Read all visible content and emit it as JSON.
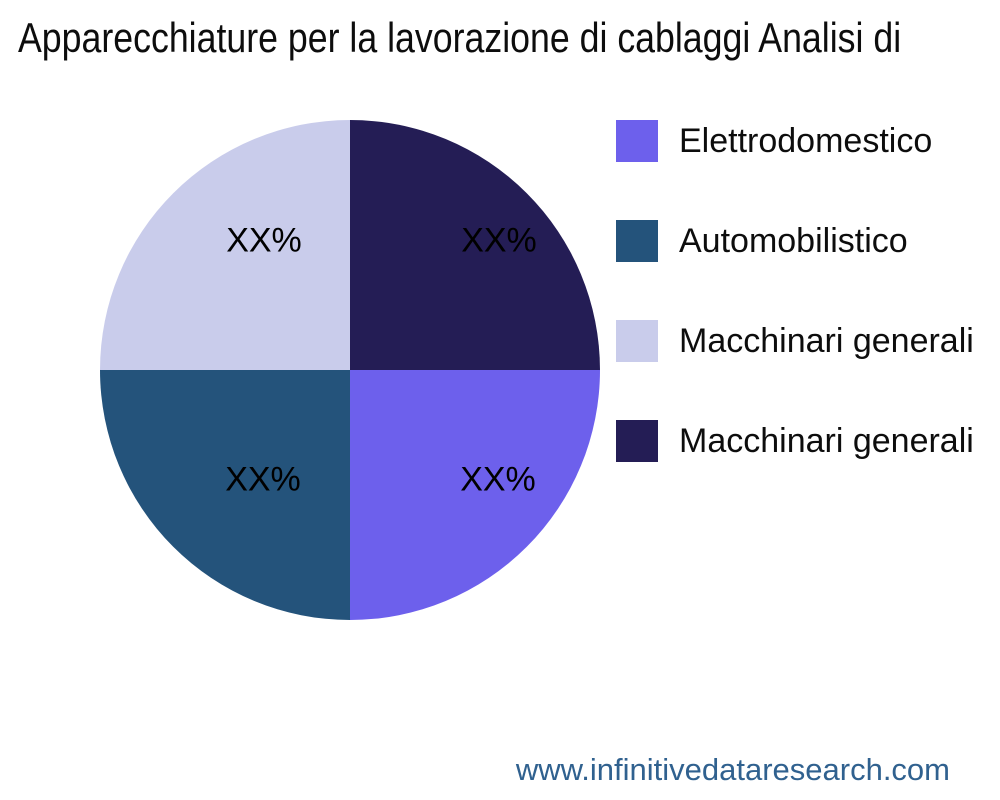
{
  "title": "Apparecchiature per la lavorazione di cablaggi Analisi di",
  "footer": {
    "website": "www.infinitivedataresearch.com",
    "color": "#30618f"
  },
  "chart_data": {
    "type": "pie",
    "title": "Apparecchiature per la lavorazione di cablaggi Analisi di",
    "legend_position": "right",
    "start_angle_deg": 0,
    "direction": "clockwise",
    "slices": [
      {
        "label": "Macchinari generali",
        "value": 25,
        "display_value": "XX%",
        "color": "#241d55",
        "quadrant": "top-right"
      },
      {
        "label": "Elettrodomestico",
        "value": 25,
        "display_value": "XX%",
        "color": "#6d60ec",
        "quadrant": "bottom-right"
      },
      {
        "label": "Automobilistico",
        "value": 25,
        "display_value": "XX%",
        "color": "#24537b",
        "quadrant": "bottom-left"
      },
      {
        "label": "Macchinari generali",
        "value": 25,
        "display_value": "XX%",
        "color": "#c9cceb",
        "quadrant": "top-left"
      }
    ],
    "legend": [
      {
        "label": "Elettrodomestico",
        "color": "#6d60ec"
      },
      {
        "label": "Automobilistico",
        "color": "#24537b"
      },
      {
        "label": "Macchinari generali",
        "color": "#c9cceb"
      },
      {
        "label": "Macchinari generali",
        "color": "#241d55"
      }
    ]
  }
}
